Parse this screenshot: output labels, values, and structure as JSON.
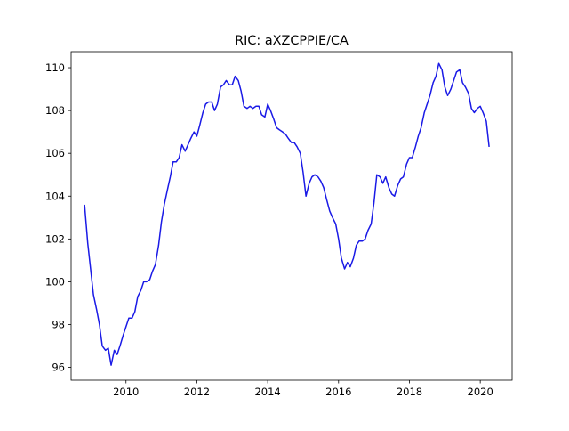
{
  "chart_data": {
    "type": "line",
    "title": "RIC: aXZCPPIE/CA",
    "xlabel": "",
    "ylabel": "",
    "xlim": [
      2008.45,
      2020.9
    ],
    "ylim": [
      95.4,
      110.75
    ],
    "grid": false,
    "legend": "none",
    "colors": {
      "line": "#1a1ae6",
      "axes": "#000000",
      "background": "#ffffff"
    },
    "x_ticks": [
      2010,
      2012,
      2014,
      2016,
      2018,
      2020
    ],
    "x_tick_labels": [
      "2010",
      "2012",
      "2014",
      "2016",
      "2018",
      "2020"
    ],
    "y_ticks": [
      96,
      98,
      100,
      102,
      104,
      106,
      108,
      110
    ],
    "y_tick_labels": [
      "96",
      "98",
      "100",
      "102",
      "104",
      "106",
      "108",
      "110"
    ],
    "series": [
      {
        "x": [
          2008.83,
          2008.92,
          2009.0,
          2009.08,
          2009.17,
          2009.25,
          2009.33,
          2009.42,
          2009.5,
          2009.58,
          2009.67,
          2009.75,
          2009.83,
          2009.92,
          2010.0,
          2010.08,
          2010.17,
          2010.25,
          2010.33,
          2010.42,
          2010.5,
          2010.58,
          2010.67,
          2010.75,
          2010.83,
          2010.92,
          2011.0,
          2011.08,
          2011.17,
          2011.25,
          2011.33,
          2011.42,
          2011.5,
          2011.58,
          2011.67,
          2011.75,
          2011.83,
          2011.92,
          2012.0,
          2012.08,
          2012.17,
          2012.25,
          2012.33,
          2012.42,
          2012.5,
          2012.58,
          2012.67,
          2012.75,
          2012.83,
          2012.92,
          2013.0,
          2013.08,
          2013.17,
          2013.25,
          2013.33,
          2013.42,
          2013.5,
          2013.58,
          2013.67,
          2013.75,
          2013.83,
          2013.92,
          2014.0,
          2014.08,
          2014.17,
          2014.25,
          2014.33,
          2014.42,
          2014.5,
          2014.58,
          2014.67,
          2014.75,
          2014.83,
          2014.92,
          2015.0,
          2015.08,
          2015.17,
          2015.25,
          2015.33,
          2015.42,
          2015.5,
          2015.58,
          2015.67,
          2015.75,
          2015.83,
          2015.92,
          2016.0,
          2016.08,
          2016.17,
          2016.25,
          2016.33,
          2016.42,
          2016.5,
          2016.58,
          2016.67,
          2016.75,
          2016.83,
          2016.92,
          2017.0,
          2017.08,
          2017.17,
          2017.25,
          2017.33,
          2017.42,
          2017.5,
          2017.58,
          2017.67,
          2017.75,
          2017.83,
          2017.92,
          2018.0,
          2018.08,
          2018.17,
          2018.25,
          2018.33,
          2018.42,
          2018.5,
          2018.58,
          2018.67,
          2018.75,
          2018.83,
          2018.92,
          2019.0,
          2019.08,
          2019.17,
          2019.25,
          2019.33,
          2019.42,
          2019.5,
          2019.58,
          2019.67,
          2019.75,
          2019.83,
          2019.92,
          2020.0,
          2020.08,
          2020.17,
          2020.25
        ],
        "y": [
          103.6,
          101.8,
          100.6,
          99.4,
          98.7,
          98.0,
          97.0,
          96.8,
          96.9,
          96.1,
          96.8,
          96.6,
          97.0,
          97.5,
          97.9,
          98.3,
          98.3,
          98.6,
          99.3,
          99.6,
          100.0,
          100.0,
          100.1,
          100.5,
          100.8,
          101.7,
          102.8,
          103.6,
          104.3,
          104.9,
          105.6,
          105.6,
          105.8,
          106.4,
          106.1,
          106.4,
          106.7,
          107.0,
          106.8,
          107.3,
          107.9,
          108.3,
          108.4,
          108.4,
          108.0,
          108.3,
          109.1,
          109.2,
          109.4,
          109.2,
          109.2,
          109.6,
          109.4,
          108.9,
          108.2,
          108.1,
          108.2,
          108.1,
          108.2,
          108.2,
          107.8,
          107.7,
          108.3,
          108.0,
          107.6,
          107.2,
          107.1,
          107.0,
          106.9,
          106.7,
          106.5,
          106.5,
          106.3,
          106.0,
          105.1,
          104.0,
          104.6,
          104.9,
          105.0,
          104.9,
          104.7,
          104.4,
          103.8,
          103.3,
          103.0,
          102.7,
          102.0,
          101.1,
          100.6,
          100.9,
          100.7,
          101.1,
          101.7,
          101.9,
          101.9,
          102.0,
          102.4,
          102.7,
          103.7,
          105.0,
          104.9,
          104.6,
          104.9,
          104.4,
          104.1,
          104.0,
          104.5,
          104.8,
          104.9,
          105.5,
          105.8,
          105.8,
          106.3,
          106.8,
          107.2,
          107.9,
          108.3,
          108.7,
          109.3,
          109.6,
          110.2,
          109.9,
          109.1,
          108.7,
          109.0,
          109.4,
          109.8,
          109.9,
          109.3,
          109.1,
          108.8,
          108.1,
          107.9,
          108.1,
          108.2,
          107.9,
          107.5,
          106.3
        ]
      }
    ]
  }
}
